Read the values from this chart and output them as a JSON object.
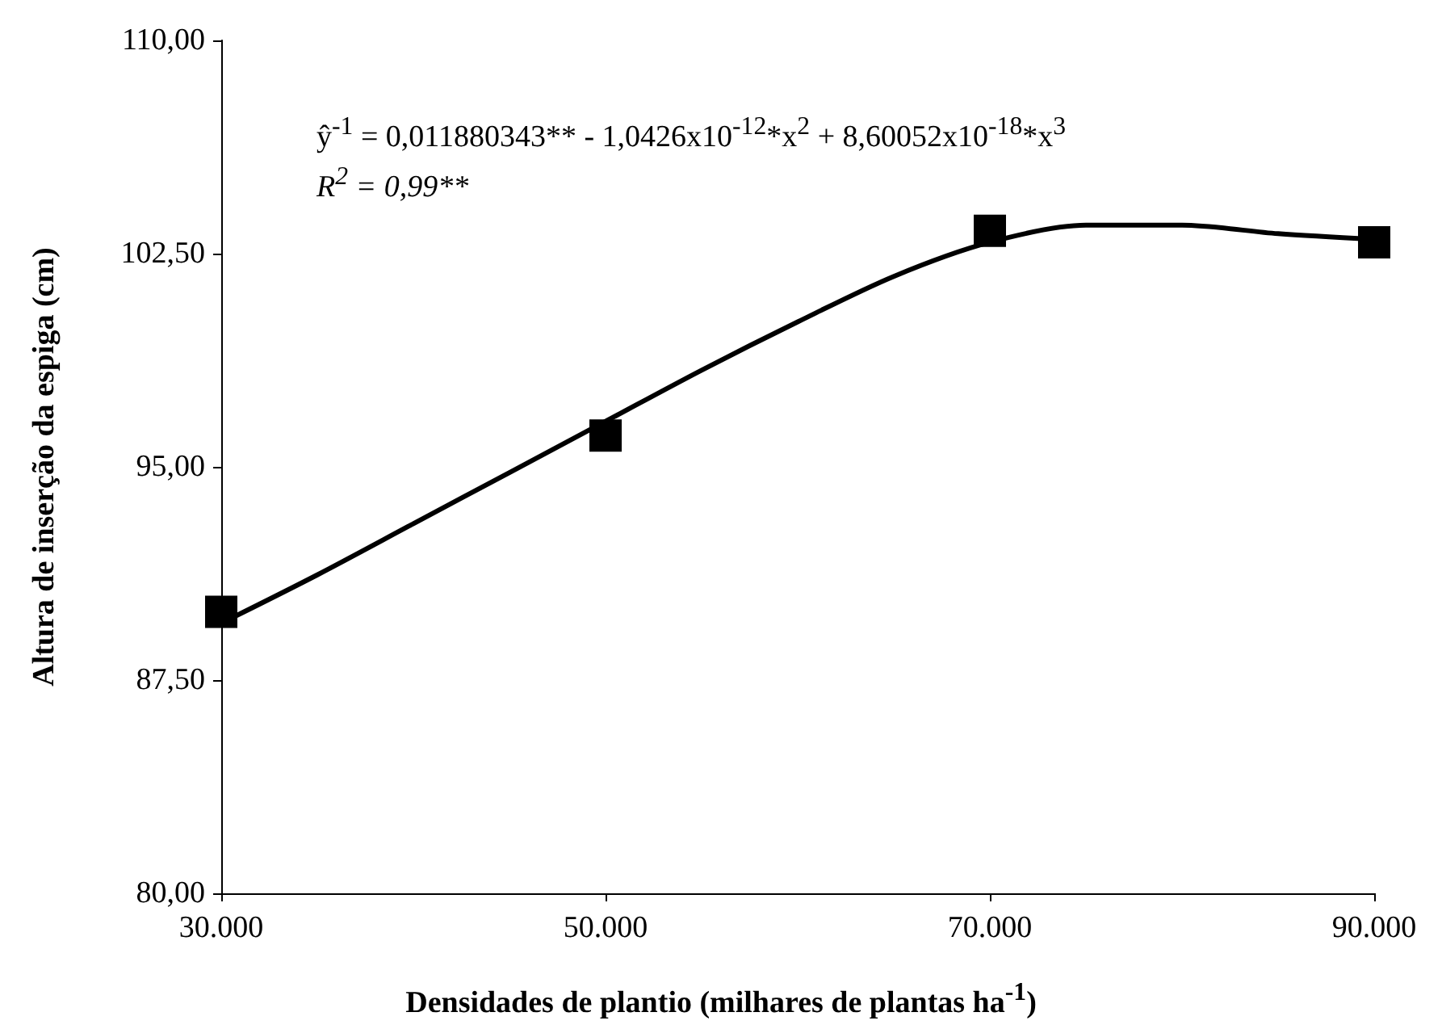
{
  "chart_data": {
    "type": "scatter",
    "xlabel": "Densidades de plantio (milhares de plantas ha$^{-1}$)",
    "ylabel": "Altura de inserção da espiga (cm)",
    "x": [
      30000,
      50000,
      70000,
      90000
    ],
    "series": [
      {
        "color": "#000000",
        "marker": "square",
        "values": [
          89.9,
          96.1,
          103.3,
          102.9
        ]
      },
      {
        "type": "line",
        "color": "#000000",
        "marker": "none",
        "line_style": "solid",
        "x": [
          30000,
          35000,
          40000,
          45000,
          50000,
          55000,
          60000,
          65000,
          70000,
          75000,
          80000,
          85000,
          90000
        ],
        "values": [
          89.5,
          91.2,
          93.0,
          94.8,
          96.6,
          98.4,
          100.1,
          101.7,
          102.9,
          103.5,
          103.5,
          103.2,
          103.0
        ]
      }
    ],
    "xlim": [
      30000,
      90000
    ],
    "xticks": [
      {
        "value": 30000,
        "label": "30.000"
      },
      {
        "value": 50000,
        "label": "50.000"
      },
      {
        "value": 70000,
        "label": "70.000"
      },
      {
        "value": 90000,
        "label": "90.000"
      }
    ],
    "ylim": [
      80,
      110
    ],
    "yticks": [
      {
        "value": 80,
        "label": "80,00"
      },
      {
        "value": 87.5,
        "label": "87,50"
      },
      {
        "value": 95,
        "label": "95,00"
      },
      {
        "value": 102.5,
        "label": "102,50"
      },
      {
        "value": 110,
        "label": "110,00"
      }
    ],
    "grid": false,
    "annotations": [
      "ŷ$^{-1}$ = 0,011880343** - 1,0426x10$^{-12}$*x$^{2}$ + 8,60052x10$^{-18}$*x$^{3}$",
      "R$^{2}$ = 0,99**"
    ]
  }
}
